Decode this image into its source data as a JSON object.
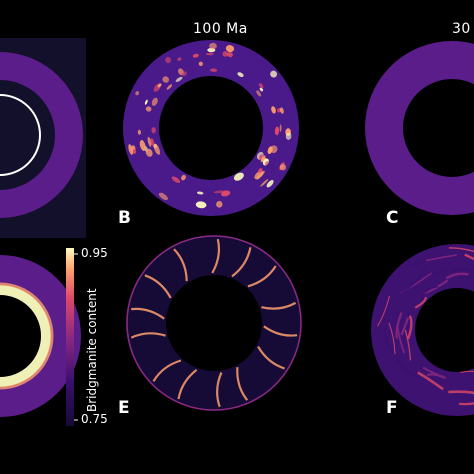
{
  "columns": [
    {
      "title": "100 Ma"
    },
    {
      "title": "30"
    }
  ],
  "panels": [
    {
      "letter": "B"
    },
    {
      "letter": "C"
    },
    {
      "letter": "E"
    },
    {
      "letter": "F"
    }
  ],
  "colorbar": {
    "title": "Bridgmanite content",
    "max_label": "0.95",
    "min_label": "0.75",
    "colors": [
      "#150a35",
      "#3b0f70",
      "#8c2981",
      "#de4968",
      "#fe9f6d",
      "#fcfdbf"
    ]
  }
}
